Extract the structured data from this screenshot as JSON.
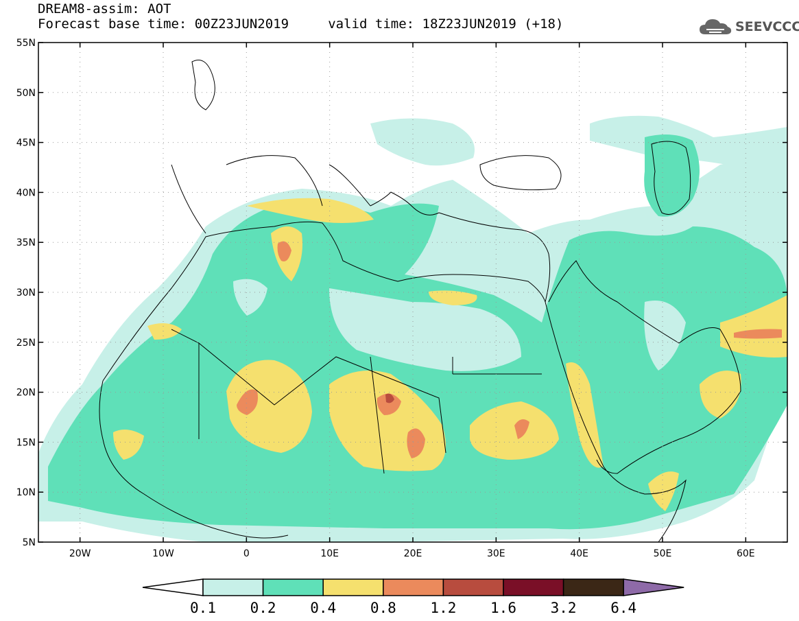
{
  "title": {
    "line1": "DREAM8-assim: AOT",
    "line2": "Forecast base time: 00Z23JUN2019     valid time: 18Z23JUN2019 (+18)"
  },
  "logo": {
    "text": "SEEVCCC",
    "icon": "cloud-icon"
  },
  "map": {
    "lon_range": [
      -25,
      65
    ],
    "lat_range": [
      5,
      55
    ],
    "lat_ticks": [
      "5N",
      "10N",
      "15N",
      "20N",
      "25N",
      "30N",
      "35N",
      "40N",
      "45N",
      "50N",
      "55N"
    ],
    "lon_ticks": [
      "20W",
      "10W",
      "0",
      "10E",
      "20E",
      "30E",
      "40E",
      "50E",
      "60E"
    ],
    "grid": "dotted"
  },
  "colorbar": {
    "levels": [
      "0.1",
      "0.2",
      "0.4",
      "0.8",
      "1.2",
      "1.6",
      "3.2",
      "6.4"
    ],
    "colors": [
      "#c7f0e8",
      "#5fe0b8",
      "#f5e06e",
      "#eb8a5c",
      "#b84c3e",
      "#7a0f27",
      "#3b2716"
    ],
    "under_color": "#ffffff",
    "over_color": "#8e6aa8"
  }
}
